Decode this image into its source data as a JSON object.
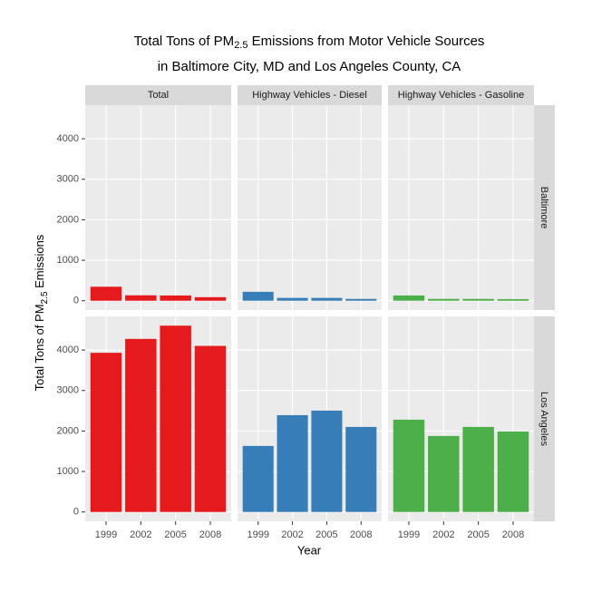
{
  "chart_data": {
    "type": "bar",
    "title": {
      "text": "Total Tons of PM",
      "subscript": "2.5",
      "rest": " Emissions from Motor Vehicle Sources"
    },
    "subtitle": "in Baltimore City, MD and Los Angeles County, CA",
    "y_label": {
      "text": "Total Tons of PM",
      "subscript": "2.5",
      "rest": " Emissions"
    },
    "x_label": "Year",
    "categories": [
      "1999",
      "2002",
      "2005",
      "2008"
    ],
    "facet_columns": [
      {
        "name": "Total",
        "color": "#e41a1c"
      },
      {
        "name": "Highway Vehicles - Diesel",
        "color": "#377eb8"
      },
      {
        "name": "Highway Vehicles - Gasoline",
        "color": "#4daf4a"
      }
    ],
    "facet_rows": [
      {
        "name": "Baltimore",
        "values": [
          [
            346,
            134,
            130,
            88
          ],
          [
            220,
            70,
            70,
            45
          ],
          [
            130,
            45,
            45,
            40
          ]
        ]
      },
      {
        "name": "Los Angeles",
        "values": [
          [
            3931,
            4274,
            4601,
            4101
          ],
          [
            1631,
            2391,
            2503,
            2100
          ],
          [
            2279,
            1877,
            2100,
            1989
          ]
        ]
      }
    ],
    "ylim": [
      -230,
      4830
    ],
    "yticks": [
      0,
      1000,
      2000,
      3000,
      4000
    ],
    "grid": true
  }
}
